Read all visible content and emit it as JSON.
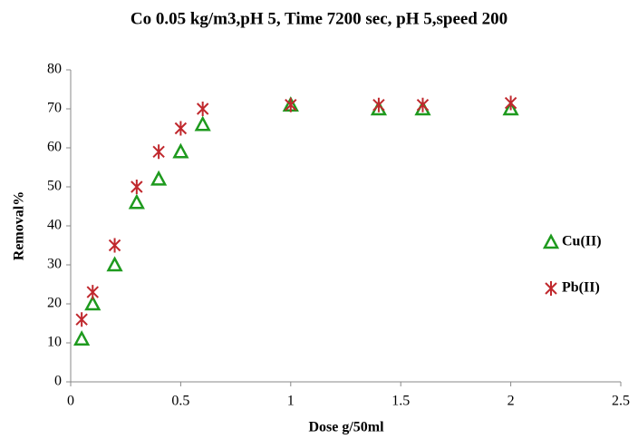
{
  "chart_data": {
    "type": "scatter",
    "title": "Co 0.05 kg/m3,pH 5, Time 7200 sec, pH 5,speed 200",
    "x_label": "Dose g/50ml",
    "y_label": "Removal%",
    "x": [
      0.05,
      0.1,
      0.2,
      0.3,
      0.4,
      0.5,
      0.6,
      1,
      1.4,
      1.6,
      2
    ],
    "series": [
      {
        "name": "Cu(II)",
        "color": "#1e9a1e",
        "marker": "triangle",
        "values": [
          11,
          20,
          30,
          46,
          52,
          59,
          66,
          71,
          70,
          70,
          70
        ]
      },
      {
        "name": "Pb(II)",
        "color": "#c0282d",
        "marker": "asterisk",
        "values": [
          16,
          23,
          35,
          50,
          59,
          65,
          70,
          71,
          71,
          71,
          71.5
        ]
      }
    ],
    "xlim": [
      0,
      2.5
    ],
    "xticks": [
      0,
      0.5,
      1,
      1.5,
      2,
      2.5
    ],
    "ylim": [
      0,
      80
    ],
    "yticks": [
      0,
      10,
      20,
      30,
      40,
      50,
      60,
      70,
      80
    ],
    "grid": false,
    "legend": "right"
  }
}
